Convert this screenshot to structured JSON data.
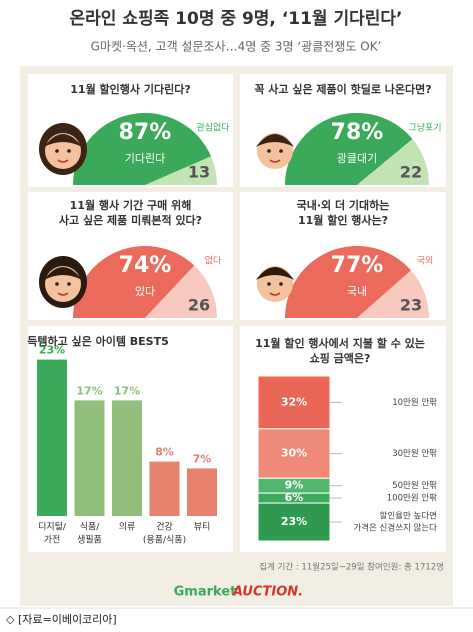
{
  "header": {
    "title": "온라인 쇼핑족 10명 중 9명, ‘11월 기다린다’",
    "subtitle": "G마켓·옥션, 고객 설문조사…4명 중 3명 ‘광클전쟁도 OK’"
  },
  "chart_data": [
    {
      "type": "pie",
      "semicircle": true,
      "title": [
        "11월 할인행사 기다린다?"
      ],
      "categories": [
        "기다린다",
        "관심없다"
      ],
      "values": [
        87,
        13
      ],
      "value_labels": [
        "87%",
        "13"
      ],
      "colors": [
        "#3aa95a",
        "#c2e3b3"
      ]
    },
    {
      "type": "pie",
      "semicircle": true,
      "title": [
        "꼭 사고 싶은 제품이 핫딜로 나온다면?"
      ],
      "categories": [
        "광클대기",
        "그냥포기"
      ],
      "values": [
        78,
        22
      ],
      "value_labels": [
        "78%",
        "22"
      ],
      "colors": [
        "#3aa95a",
        "#c2e3b3"
      ]
    },
    {
      "type": "pie",
      "semicircle": true,
      "title": [
        "11월 행사 기간 구매 위해",
        "사고 싶은 제품 미뤄본적 있다?"
      ],
      "categories": [
        "있다",
        "없다"
      ],
      "values": [
        74,
        26
      ],
      "value_labels": [
        "74%",
        "26"
      ],
      "colors": [
        "#ec6a5c",
        "#f7c9bf"
      ]
    },
    {
      "type": "pie",
      "semicircle": true,
      "title": [
        "국내·외 더 기대하는",
        "11월 할인 행사는?"
      ],
      "categories": [
        "국내",
        "국외"
      ],
      "values": [
        77,
        23
      ],
      "value_labels": [
        "77%",
        "23"
      ],
      "colors": [
        "#ec6a5c",
        "#f7c9bf"
      ]
    },
    {
      "type": "bar",
      "title": [
        "득템하고 싶은 아이템 BEST5"
      ],
      "categories": [
        [
          "디지털/",
          "가전"
        ],
        [
          "식품/",
          "생필품"
        ],
        [
          "의류"
        ],
        [
          "건강",
          "(용품/식품)"
        ],
        [
          "뷰티"
        ]
      ],
      "values": [
        23,
        17,
        17,
        8,
        7
      ],
      "value_labels": [
        "23%",
        "17%",
        "17%",
        "8%",
        "7%"
      ],
      "colors": [
        "#3aa95a",
        "#8fbf7a",
        "#8fbf7a",
        "#e8826f",
        "#e8826f"
      ]
    },
    {
      "type": "stacked-bar",
      "title": [
        "11월 할인 행사에서 지불 할 수 있는",
        "쇼핑 금액은?"
      ],
      "categories": [
        [
          "10만원 안팎"
        ],
        [
          "30만원 안팎"
        ],
        [
          "50만원 안팎"
        ],
        [
          "100만원 안팎"
        ],
        [
          "할인율만 높다면",
          "가격은 신경쓰지 않는다"
        ]
      ],
      "values": [
        32,
        30,
        9,
        6,
        23
      ],
      "value_labels": [
        "32%",
        "30%",
        "9%",
        "6%",
        "23%"
      ],
      "colors": [
        "#ea6656",
        "#f08a78",
        "#52b56c",
        "#3aa95a",
        "#2f9a4f"
      ]
    }
  ],
  "footer": {
    "note": "집계 기간 : 11월25일~29일 참여인원: 총 1712명",
    "logos": [
      "Gmarket",
      "AUCTION."
    ],
    "source": "◇ [자료=이베이코리아]"
  }
}
